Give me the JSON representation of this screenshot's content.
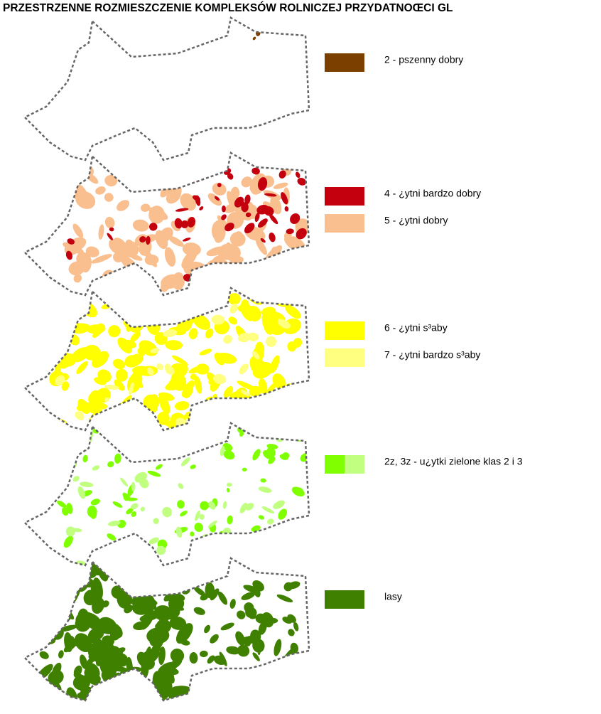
{
  "title": "PRZESTRZENNE ROZMIESZCZENIE KOMPLEKSÓW ROLNICZEJ PRZYDATNOŒCI GL",
  "legend": [
    {
      "label": "2 - pszenny dobry",
      "colors": [
        "#7b3f00"
      ]
    },
    {
      "label": "4 - ¿ytni bardzo dobry",
      "colors": [
        "#c4000f"
      ]
    },
    {
      "label": "5 - ¿ytni dobry",
      "colors": [
        "#f9bf8f"
      ]
    },
    {
      "label": "6 - ¿ytni s³aby",
      "colors": [
        "#ffff00"
      ]
    },
    {
      "label": "7 - ¿ytni bardzo s³aby",
      "colors": [
        "#ffff80"
      ]
    },
    {
      "label": "2z, 3z - u¿ytki zielone klas 2 i 3",
      "colors": [
        "#80ff00",
        "#c0ff80"
      ]
    },
    {
      "label": "lasy",
      "colors": [
        "#408000"
      ]
    }
  ]
}
